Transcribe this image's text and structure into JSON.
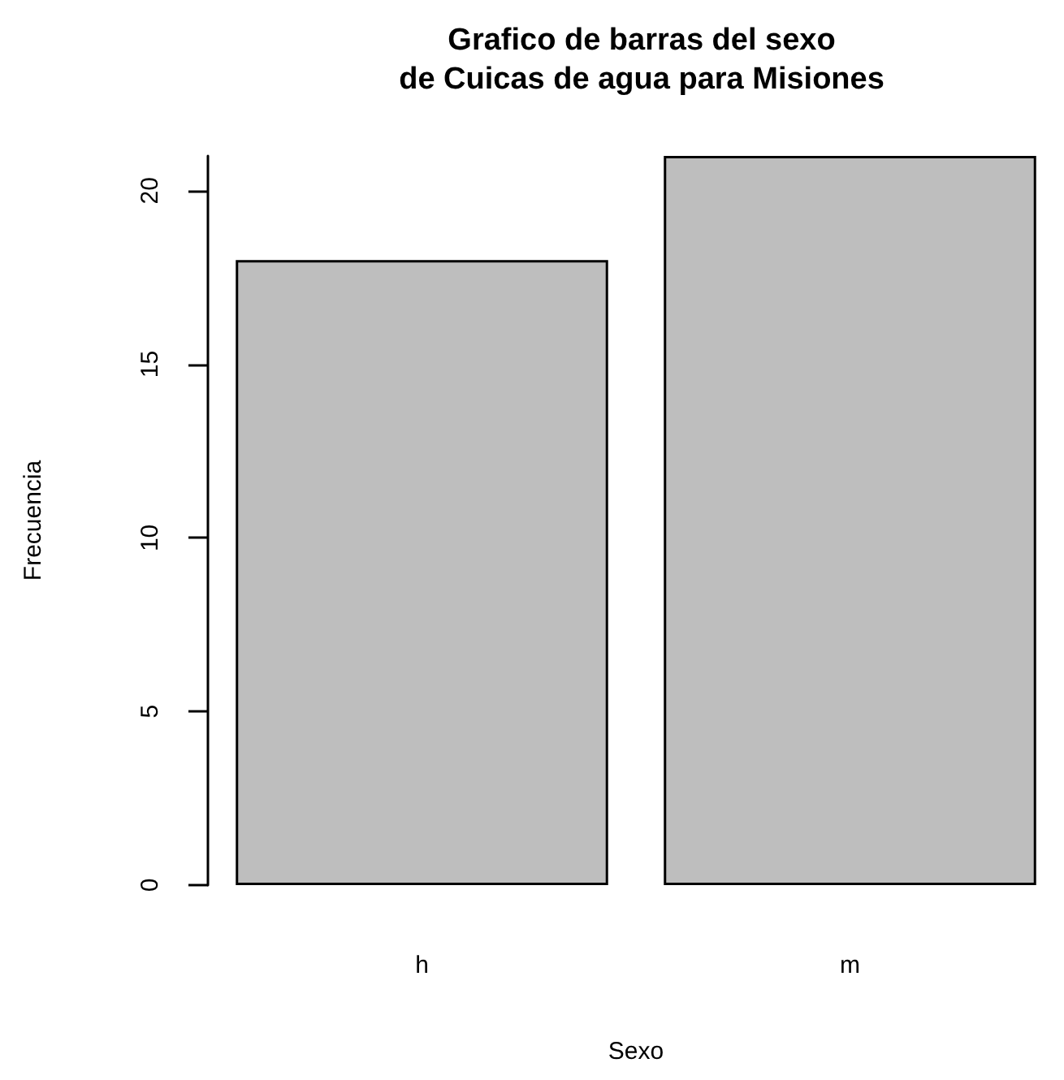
{
  "chart_data": {
    "type": "bar",
    "title": "Grafico de barras del sexo\nde Cuicas de agua para Misiones",
    "xlabel": "Sexo",
    "ylabel": "Frecuencia",
    "categories": [
      "h",
      "m"
    ],
    "values": [
      18,
      21
    ],
    "color": "#bebebe",
    "ylim": [
      0,
      21
    ],
    "yticks": [
      0,
      5,
      10,
      15,
      20
    ],
    "grid": false
  }
}
